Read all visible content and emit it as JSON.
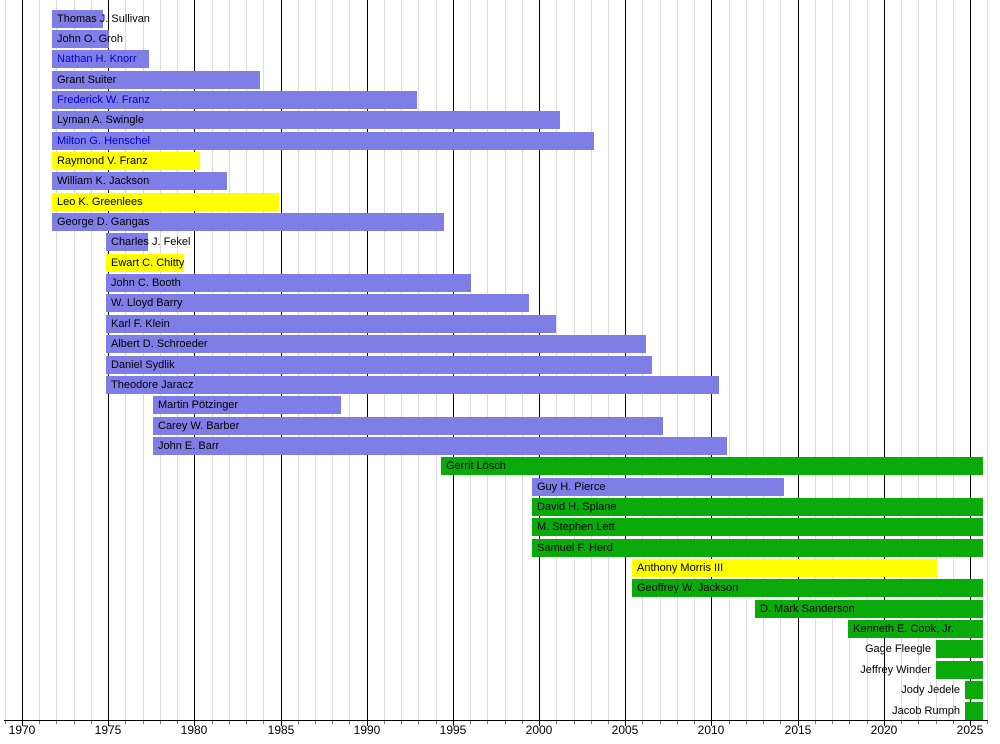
{
  "chart_data": {
    "type": "bar",
    "subtype": "gantt-timeline",
    "description_visible_text_only": "Timeline of tenures, horizontal bars by person",
    "xlim": [
      1969,
      2026
    ],
    "grid": {
      "minor_step_years": 1,
      "major_step_years": 5
    },
    "legend_position": "none",
    "x_tick_labels": [
      "1970",
      "1975",
      "1980",
      "1985",
      "1990",
      "1995",
      "2000",
      "2005",
      "2010",
      "2015",
      "2020",
      "2025"
    ],
    "x_tick_years": [
      1970,
      1975,
      1980,
      1985,
      1990,
      1995,
      2000,
      2005,
      2010,
      2015,
      2020,
      2025
    ],
    "colors": {
      "purple": "#7e7ee6",
      "yellow": "#ffff00",
      "green": "#0aaa0a",
      "link_text": "#0000cc",
      "plain_text": "#000000",
      "grid_minor": "#dcdcdc",
      "grid_major": "#000000"
    },
    "members": [
      {
        "name": "Thomas J. Sullivan",
        "start": 1971.75,
        "end": 1974.7,
        "color": "purple",
        "link": false,
        "label_side": "inside"
      },
      {
        "name": "John O. Groh",
        "start": 1971.75,
        "end": 1975.05,
        "color": "purple",
        "link": false,
        "label_side": "inside"
      },
      {
        "name": "Nathan H. Knorr",
        "start": 1971.75,
        "end": 1977.4,
        "color": "purple",
        "link": true,
        "label_side": "inside"
      },
      {
        "name": "Grant Suiter",
        "start": 1971.75,
        "end": 1983.8,
        "color": "purple",
        "link": false,
        "label_side": "inside"
      },
      {
        "name": "Frederick W. Franz",
        "start": 1971.75,
        "end": 1992.95,
        "color": "purple",
        "link": true,
        "label_side": "inside"
      },
      {
        "name": "Lyman A. Swingle",
        "start": 1971.75,
        "end": 2001.2,
        "color": "purple",
        "link": false,
        "label_side": "inside"
      },
      {
        "name": "Milton G. Henschel",
        "start": 1971.75,
        "end": 2003.2,
        "color": "purple",
        "link": true,
        "label_side": "inside"
      },
      {
        "name": "Raymond V. Franz",
        "start": 1971.75,
        "end": 1980.35,
        "color": "yellow",
        "link": false,
        "label_side": "inside"
      },
      {
        "name": "William K. Jackson",
        "start": 1971.75,
        "end": 1981.9,
        "color": "purple",
        "link": false,
        "label_side": "inside"
      },
      {
        "name": "Leo K. Greenlees",
        "start": 1971.75,
        "end": 1984.9,
        "color": "yellow",
        "link": false,
        "label_side": "inside"
      },
      {
        "name": "George D. Gangas",
        "start": 1971.75,
        "end": 1994.5,
        "color": "purple",
        "link": false,
        "label_side": "inside"
      },
      {
        "name": "Charles J. Fekel",
        "start": 1974.85,
        "end": 1977.3,
        "color": "purple",
        "link": false,
        "label_side": "inside"
      },
      {
        "name": "Ewart C. Chitty",
        "start": 1974.85,
        "end": 1979.4,
        "color": "yellow",
        "link": false,
        "label_side": "inside"
      },
      {
        "name": "John C. Booth",
        "start": 1974.85,
        "end": 1996.0,
        "color": "purple",
        "link": false,
        "label_side": "inside"
      },
      {
        "name": "W. Lloyd Barry",
        "start": 1974.85,
        "end": 1999.4,
        "color": "purple",
        "link": false,
        "label_side": "inside"
      },
      {
        "name": "Karl F. Klein",
        "start": 1974.85,
        "end": 2000.95,
        "color": "purple",
        "link": false,
        "label_side": "inside"
      },
      {
        "name": "Albert D. Schroeder",
        "start": 1974.85,
        "end": 2006.2,
        "color": "purple",
        "link": false,
        "label_side": "inside"
      },
      {
        "name": "Daniel Sydlik",
        "start": 1974.85,
        "end": 2006.55,
        "color": "purple",
        "link": false,
        "label_side": "inside"
      },
      {
        "name": "Theodore Jaracz",
        "start": 1974.85,
        "end": 2010.4,
        "color": "purple",
        "link": false,
        "label_side": "inside"
      },
      {
        "name": "Martin Pötzinger",
        "start": 1977.6,
        "end": 1988.5,
        "color": "purple",
        "link": false,
        "label_side": "inside"
      },
      {
        "name": "Carey W. Barber",
        "start": 1977.6,
        "end": 2007.2,
        "color": "purple",
        "link": false,
        "label_side": "inside"
      },
      {
        "name": "John E. Barr",
        "start": 1977.6,
        "end": 2010.9,
        "color": "purple",
        "link": false,
        "label_side": "inside"
      },
      {
        "name": "Gerrit Lösch",
        "start": 1994.3,
        "end": 2025.75,
        "color": "green",
        "link": false,
        "label_side": "inside"
      },
      {
        "name": "Guy H. Pierce",
        "start": 1999.6,
        "end": 2014.2,
        "color": "purple",
        "link": false,
        "label_side": "inside"
      },
      {
        "name": "David H. Splane",
        "start": 1999.6,
        "end": 2025.75,
        "color": "green",
        "link": false,
        "label_side": "inside"
      },
      {
        "name": "M. Stephen Lett",
        "start": 1999.6,
        "end": 2025.75,
        "color": "green",
        "link": false,
        "label_side": "inside"
      },
      {
        "name": "Samuel F. Herd",
        "start": 1999.6,
        "end": 2025.75,
        "color": "green",
        "link": false,
        "label_side": "inside"
      },
      {
        "name": "Anthony Morris III",
        "start": 2005.4,
        "end": 2023.1,
        "color": "yellow",
        "link": false,
        "label_side": "inside"
      },
      {
        "name": "Geoffrey W. Jackson",
        "start": 2005.4,
        "end": 2025.75,
        "color": "green",
        "link": false,
        "label_side": "inside"
      },
      {
        "name": "D. Mark Sanderson",
        "start": 2012.55,
        "end": 2025.75,
        "color": "green",
        "link": false,
        "label_side": "inside"
      },
      {
        "name": "Kenneth E. Cook, Jr.",
        "start": 2017.9,
        "end": 2025.75,
        "color": "green",
        "link": false,
        "label_side": "inside"
      },
      {
        "name": "Gage Fleegle",
        "start": 2023.0,
        "end": 2025.75,
        "color": "green",
        "link": false,
        "label_side": "left"
      },
      {
        "name": "Jeffrey Winder",
        "start": 2023.0,
        "end": 2025.75,
        "color": "green",
        "link": false,
        "label_side": "left"
      },
      {
        "name": "Jody Jedele",
        "start": 2024.7,
        "end": 2025.75,
        "color": "green",
        "link": false,
        "label_side": "left"
      },
      {
        "name": "Jacob Rumph",
        "start": 2024.7,
        "end": 2025.75,
        "color": "green",
        "link": false,
        "label_side": "left"
      }
    ]
  }
}
